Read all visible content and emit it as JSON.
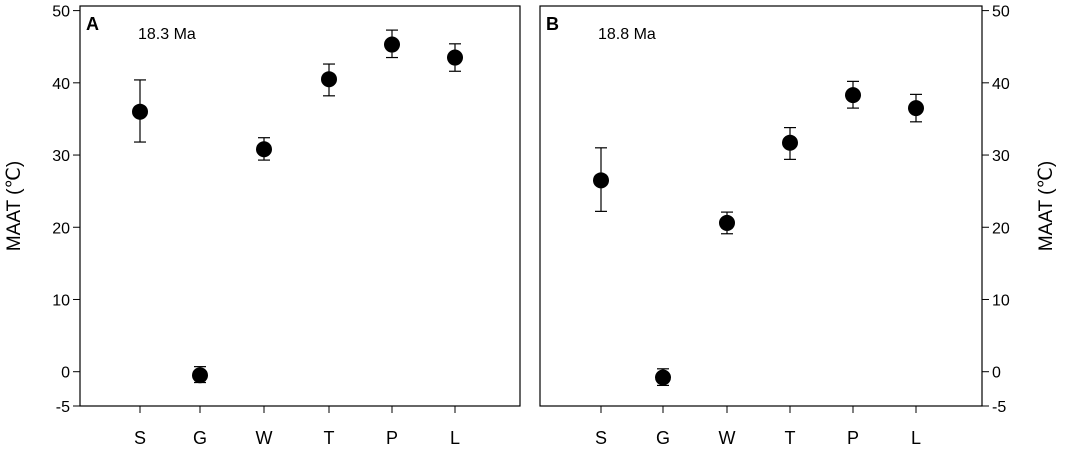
{
  "chart_data": [
    {
      "type": "scatter",
      "panel_label": "A",
      "annotation": "18.3 Ma",
      "ylabel": "MAAT (℃)",
      "ylabel_side": "left",
      "categories": [
        "S",
        "G",
        "W",
        "T",
        "P",
        "L"
      ],
      "y_ticks": [
        -5,
        0,
        10,
        20,
        30,
        40,
        50
      ],
      "ylim": [
        -5,
        50
      ],
      "series": [
        {
          "values": [
            36.0,
            -0.5,
            30.8,
            40.5,
            45.3,
            43.5
          ],
          "err_low": [
            31.8,
            -1.5,
            29.3,
            38.2,
            43.5,
            41.6
          ],
          "err_high": [
            40.4,
            0.7,
            32.4,
            42.6,
            47.3,
            45.4
          ]
        }
      ]
    },
    {
      "type": "scatter",
      "panel_label": "B",
      "annotation": "18.8 Ma",
      "ylabel": "MAAT (℃)",
      "ylabel_side": "right",
      "categories": [
        "S",
        "G",
        "W",
        "T",
        "P",
        "L"
      ],
      "y_ticks": [
        -5,
        0,
        10,
        20,
        30,
        40,
        50
      ],
      "ylim": [
        -5,
        50
      ],
      "series": [
        {
          "values": [
            26.5,
            -0.8,
            20.6,
            31.7,
            38.3,
            36.5
          ],
          "err_low": [
            22.2,
            -1.9,
            19.1,
            29.4,
            36.5,
            34.6
          ],
          "err_high": [
            31.0,
            0.4,
            22.1,
            33.8,
            40.2,
            38.4
          ]
        }
      ]
    }
  ]
}
